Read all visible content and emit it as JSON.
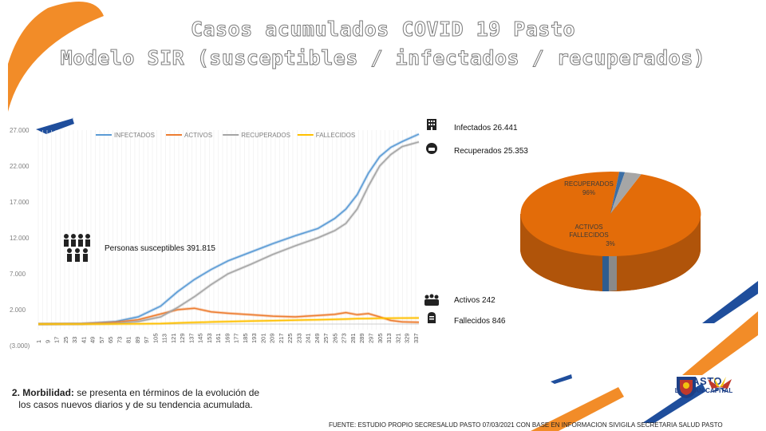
{
  "title_line1": "Casos acumulados COVID 19 Pasto",
  "title_line2": "Modelo SIR (susceptibles / infectados / recuperados)",
  "chart_data": [
    {
      "type": "line",
      "x_tick_labels": [
        "1",
        "9",
        "17",
        "25",
        "33",
        "41",
        "49",
        "57",
        "65",
        "73",
        "81",
        "89",
        "97",
        "105",
        "113",
        "121",
        "129",
        "137",
        "145",
        "153",
        "161",
        "169",
        "177",
        "185",
        "193",
        "201",
        "209",
        "217",
        "225",
        "233",
        "241",
        "249",
        "257",
        "265",
        "273",
        "281",
        "289",
        "297",
        "305",
        "313",
        "321",
        "329",
        "337"
      ],
      "y_tick_labels": [
        "27.000",
        "22.000",
        "17.000",
        "12.000",
        "7.000",
        "2.000",
        "(3.000)"
      ],
      "ylim": [
        -3000,
        27000
      ],
      "xlim": [
        1,
        340
      ],
      "legend_position": "top",
      "x": [
        1,
        40,
        70,
        90,
        110,
        125,
        140,
        155,
        170,
        190,
        210,
        230,
        250,
        265,
        275,
        285,
        295,
        305,
        315,
        325,
        340
      ],
      "series": [
        {
          "name": "INFECTADOS",
          "color": "#5b9bd5",
          "values": [
            0,
            60,
            350,
            1000,
            2500,
            4500,
            6200,
            7600,
            8800,
            10000,
            11200,
            12300,
            13300,
            14700,
            16000,
            18000,
            21000,
            23300,
            24600,
            25400,
            26441
          ]
        },
        {
          "name": "ACTIVOS",
          "color": "#ed7d31",
          "values": [
            0,
            40,
            250,
            600,
            1400,
            2000,
            2200,
            1700,
            1500,
            1300,
            1100,
            1000,
            1200,
            1350,
            1600,
            1300,
            1450,
            1000,
            500,
            300,
            242
          ]
        },
        {
          "name": "RECUPERADOS",
          "color": "#a5a5a5",
          "values": [
            0,
            15,
            80,
            350,
            1000,
            2300,
            3800,
            5500,
            7000,
            8300,
            9700,
            10900,
            12000,
            13000,
            14000,
            16000,
            19200,
            22000,
            23600,
            24700,
            25353
          ]
        },
        {
          "name": "FALLECIDOS",
          "color": "#ffc000",
          "values": [
            0,
            2,
            8,
            25,
            70,
            150,
            220,
            290,
            350,
            420,
            480,
            540,
            600,
            650,
            700,
            740,
            770,
            800,
            820,
            835,
            846
          ]
        }
      ]
    },
    {
      "type": "pie",
      "slices": [
        {
          "label": "RECUPERADOS",
          "pct_text": "96%",
          "value": 96,
          "color": "#e36c09"
        },
        {
          "label": "ACTIVOS",
          "pct_text": "",
          "value": 1,
          "color": "#3b6ea5"
        },
        {
          "label": "FALLECIDOS",
          "pct_text": "3%",
          "value": 3,
          "color": "#a6a6a6"
        }
      ]
    }
  ],
  "labels": {
    "infectados": "Infectados 26.441",
    "recuperados": "Recuperados 25.353",
    "susceptibles": "Personas susceptibles 391.815",
    "activos": "Activos 242",
    "fallecidos": "Fallecidos 846"
  },
  "bottom": {
    "heading": "2. Morbilidad:",
    "body": " se presenta en términos de la evolución de los casos nuevos diarios y de su tendencia acumulada."
  },
  "source": "FUENTE: ESTUDIO PROPIO SECRESALUD PASTO 07/03/2021 CON BASE EN INFORMACION SIVIGILA SECRETARIA SALUD PASTO",
  "logo": {
    "name": "PASTO",
    "tagline": "LA GRAN CAPITAL"
  },
  "colors": {
    "orange_accent": "#f28c28",
    "blue_accent": "#1f4e9c"
  }
}
